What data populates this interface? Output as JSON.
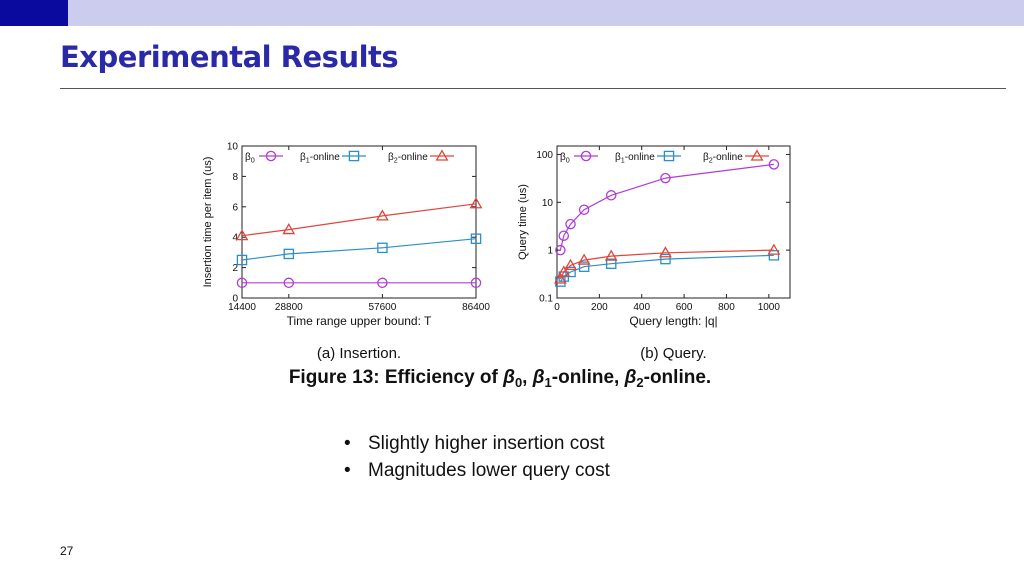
{
  "slide": {
    "title": "Experimental Results",
    "bullets": [
      "Slightly higher insertion cost",
      "Magnitudes lower query cost"
    ],
    "page_number": "27"
  },
  "colors": {
    "topbar": "#ccccee",
    "accent": "#0a0a9e",
    "title": "#2a2aa8",
    "beta0": "#b23bd6",
    "beta1": "#2a8fc9",
    "beta2": "#e0453a"
  },
  "legend": [
    {
      "base": "β",
      "sub": "0",
      "suffix": "",
      "marker": "circle"
    },
    {
      "base": "β",
      "sub": "1",
      "suffix": "-online",
      "marker": "square"
    },
    {
      "base": "β",
      "sub": "2",
      "suffix": "-online",
      "marker": "triangle"
    }
  ],
  "figure": {
    "caption_prefix": "Figure 13: Efficiency of ",
    "caption_terms": [
      {
        "base": "β",
        "sub": "0",
        "after": ", "
      },
      {
        "base": "β",
        "sub": "1",
        "after": "-online, "
      },
      {
        "base": "β",
        "sub": "2",
        "after": "-online."
      }
    ]
  },
  "chart_data": [
    {
      "type": "line",
      "subcaption": "(a) Insertion.",
      "xlabel": "Time range upper bound: T",
      "ylabel": "Insertion time per item (us)",
      "x": [
        14400,
        28800,
        57600,
        86400
      ],
      "xticks": [
        14400,
        28800,
        57600,
        86400
      ],
      "xlim": [
        14400,
        86400
      ],
      "ylim": [
        0,
        10
      ],
      "yticks": [
        0,
        2,
        4,
        6,
        8,
        10
      ],
      "yscale": "linear",
      "series": [
        {
          "key": "beta0",
          "values": [
            1.0,
            1.0,
            1.0,
            1.0
          ]
        },
        {
          "key": "beta1",
          "values": [
            2.5,
            2.9,
            3.3,
            3.9
          ]
        },
        {
          "key": "beta2",
          "values": [
            4.1,
            4.5,
            5.4,
            6.2
          ]
        }
      ]
    },
    {
      "type": "line",
      "subcaption": "(b) Query.",
      "xlabel": "Query length: |q|",
      "ylabel": "Query time (us)",
      "x": [
        16,
        32,
        64,
        128,
        256,
        512,
        1024
      ],
      "xticks": [
        0,
        200,
        400,
        600,
        800,
        1000
      ],
      "xlim": [
        0,
        1100
      ],
      "ylim": [
        0.1,
        150
      ],
      "yticks": [
        0.1,
        1,
        10,
        100
      ],
      "ytick_labels": [
        "0.1",
        "1",
        "10",
        "100"
      ],
      "yscale": "log",
      "series": [
        {
          "key": "beta0",
          "values": [
            1.0,
            2.0,
            3.5,
            7.0,
            14,
            32,
            62
          ]
        },
        {
          "key": "beta1",
          "values": [
            0.22,
            0.28,
            0.35,
            0.45,
            0.52,
            0.65,
            0.78
          ]
        },
        {
          "key": "beta2",
          "values": [
            0.25,
            0.35,
            0.48,
            0.62,
            0.75,
            0.88,
            1.0
          ]
        }
      ]
    }
  ]
}
